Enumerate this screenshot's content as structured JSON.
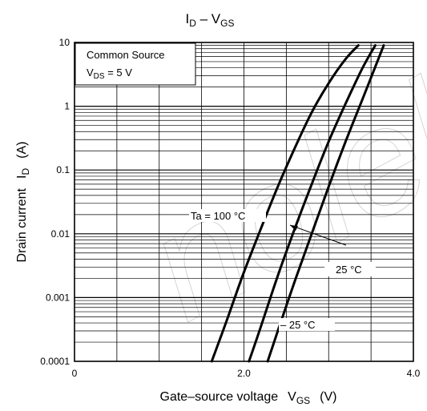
{
  "chart_data": {
    "type": "line",
    "title_main": "I",
    "title_sub1": "D",
    "title_mid": " – V",
    "title_sub2": "GS",
    "xlabel_main": "Gate–source voltage",
    "xlabel_sym": "V",
    "xlabel_sub": "GS",
    "xlabel_unit": "(V)",
    "ylabel_main": "Drain current",
    "ylabel_sym": "I",
    "ylabel_sub": "D",
    "ylabel_unit": "(A)",
    "xlim": [
      0,
      4.0
    ],
    "ylim": [
      0.0001,
      10
    ],
    "yscale": "log",
    "grid": true,
    "x_ticks": [
      {
        "value": 0,
        "label": "0"
      },
      {
        "value": 2.0,
        "label": "2.0"
      },
      {
        "value": 4.0,
        "label": "4.0"
      }
    ],
    "y_ticks": [
      {
        "value": 10,
        "label": "10"
      },
      {
        "value": 1,
        "label": "1"
      },
      {
        "value": 0.1,
        "label": "0.1"
      },
      {
        "value": 0.01,
        "label": "0.01"
      },
      {
        "value": 0.001,
        "label": "0.001"
      },
      {
        "value": 0.0001,
        "label": "0.0001"
      }
    ],
    "conditions": {
      "line1": "Common Source",
      "line2_sym": "V",
      "line2_sub": "DS",
      "line2_rest": " = 5 V"
    },
    "series": [
      {
        "name": "Ta = 100 °C",
        "x": [
          1.62,
          1.8,
          2.0,
          2.2,
          2.4,
          2.6,
          2.8,
          3.0,
          3.2,
          3.35
        ],
        "y": [
          0.0001,
          0.00045,
          0.0025,
          0.012,
          0.055,
          0.22,
          0.8,
          2.3,
          5.5,
          9
        ]
      },
      {
        "name": "25 °C",
        "x": [
          2.06,
          2.2,
          2.4,
          2.6,
          2.8,
          3.0,
          3.2,
          3.4,
          3.55
        ],
        "y": [
          0.0001,
          0.00035,
          0.0022,
          0.012,
          0.06,
          0.28,
          1.1,
          4.0,
          9
        ]
      },
      {
        "name": "−25 °C",
        "x": [
          2.28,
          2.4,
          2.6,
          2.8,
          3.0,
          3.2,
          3.4,
          3.65
        ],
        "y": [
          0.0001,
          0.0003,
          0.0018,
          0.01,
          0.055,
          0.28,
          1.3,
          9
        ]
      }
    ],
    "annotations": [
      {
        "label": "Ta = 100 °C",
        "series": 0
      },
      {
        "label": "25 °C",
        "series": 1
      },
      {
        "label": "– 25 °C",
        "series": 2
      }
    ]
  }
}
